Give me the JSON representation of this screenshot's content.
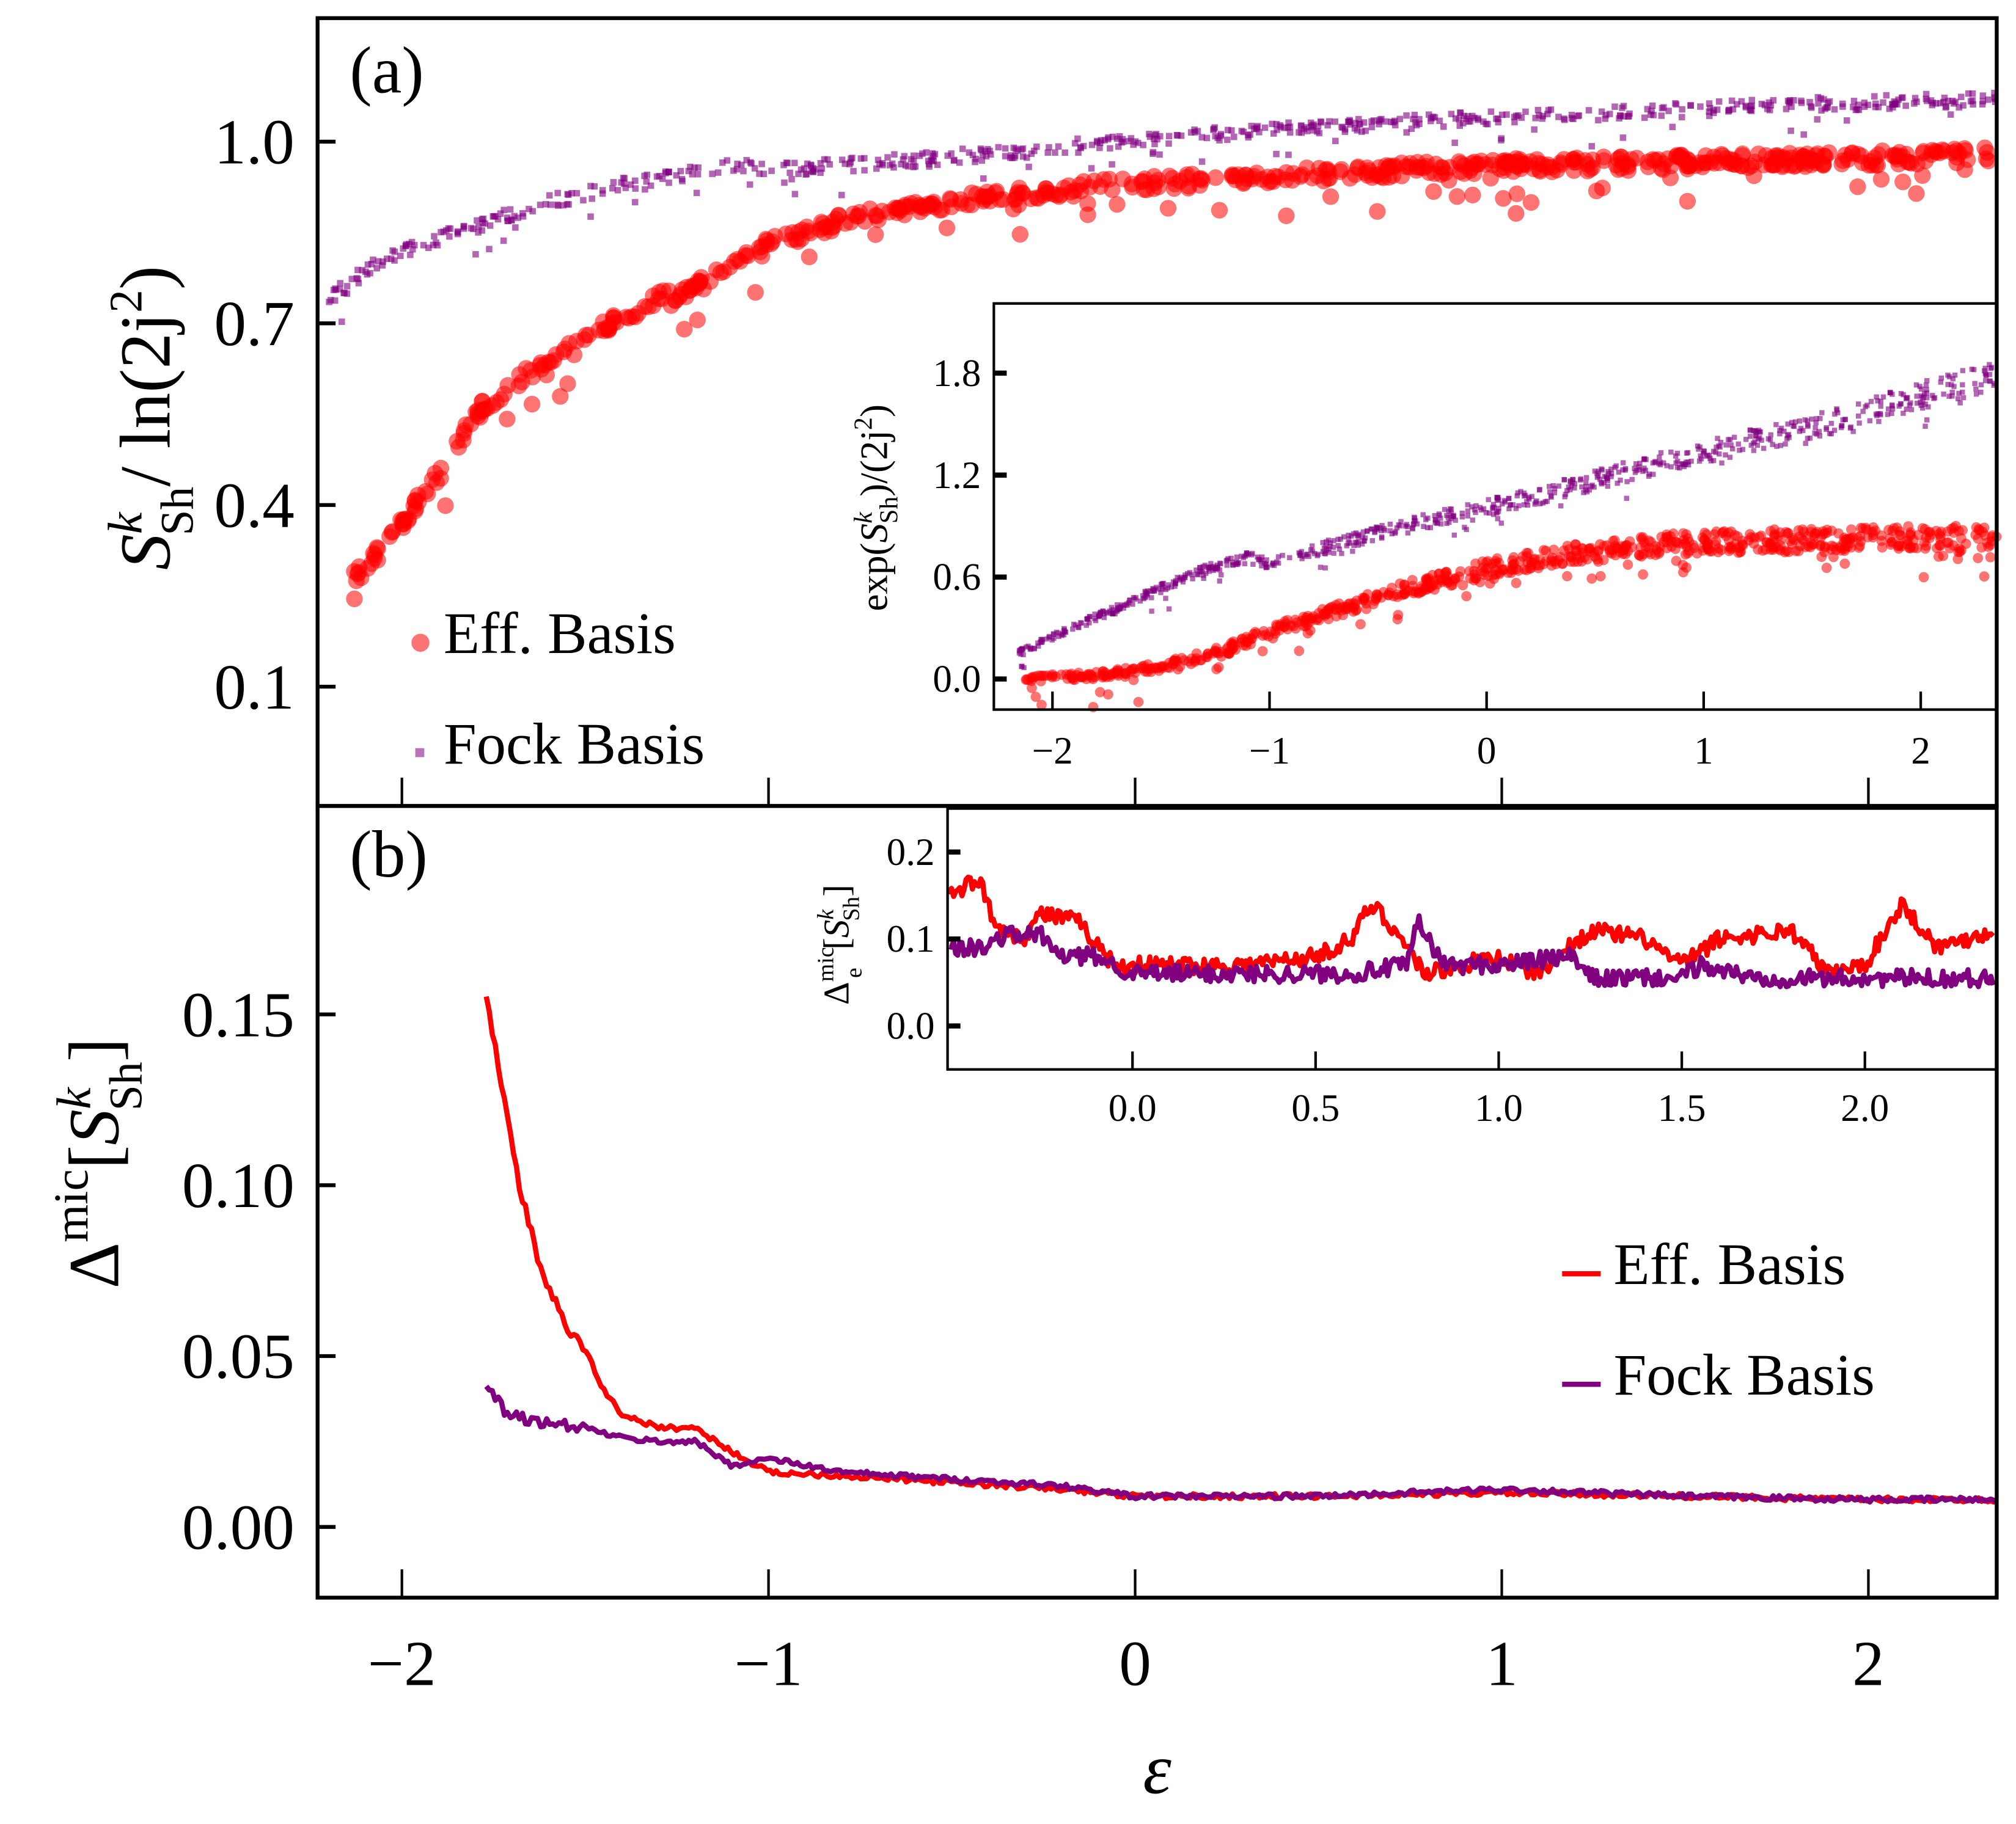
{
  "chart_data": [
    {
      "id": "a",
      "type": "scatter",
      "panel_label": "(a)",
      "ylabel": {
        "main": "S",
        "sup": "k",
        "sub": "Sh",
        "rest": "/ ln(2j",
        "sup2": "2",
        "close": ")"
      },
      "xlim": [
        -2.23,
        2.35
      ],
      "ylim": [
        -0.097,
        1.204
      ],
      "xticks": [
        -2,
        -1,
        0,
        1,
        2
      ],
      "yticks": [
        0.1,
        0.4,
        0.7,
        1.0
      ],
      "ytick_labels": [
        "0.1",
        "0.4",
        "0.7",
        "1.0"
      ],
      "legend": {
        "position": "lower-left",
        "entries": [
          "Eff. Basis",
          "Fock Basis"
        ]
      },
      "series": [
        {
          "name": "Eff. Basis",
          "color": "#ff0000",
          "marker": "circle",
          "x": [
            -2.13,
            -2.05,
            -2.0,
            -1.9,
            -1.8,
            -1.7,
            -1.6,
            -1.5,
            -1.4,
            -1.3,
            -1.2,
            -1.1,
            -1.0,
            -0.8,
            -0.6,
            -0.4,
            -0.2,
            0.0,
            0.3,
            0.6,
            1.0,
            1.4,
            1.8,
            2.2,
            2.35
          ],
          "y": [
            0.28,
            0.33,
            0.37,
            0.45,
            0.55,
            0.6,
            0.64,
            0.68,
            0.71,
            0.74,
            0.76,
            0.79,
            0.83,
            0.87,
            0.89,
            0.91,
            0.92,
            0.93,
            0.94,
            0.95,
            0.96,
            0.965,
            0.97,
            0.975,
            0.98
          ]
        },
        {
          "name": "Fock Basis",
          "color": "#800080",
          "marker": "square",
          "x": [
            -2.2,
            -2.1,
            -2.0,
            -1.8,
            -1.6,
            -1.4,
            -1.2,
            -1.1,
            -1.0,
            -0.8,
            -0.5,
            -0.2,
            0.0,
            0.4,
            0.8,
            1.2,
            1.6,
            2.0,
            2.35
          ],
          "y": [
            0.74,
            0.79,
            0.82,
            0.86,
            0.9,
            0.93,
            0.95,
            0.96,
            0.955,
            0.96,
            0.975,
            0.99,
            1.005,
            1.02,
            1.035,
            1.045,
            1.055,
            1.065,
            1.07
          ]
        }
      ]
    },
    {
      "id": "a-inset",
      "type": "scatter",
      "ylabel": {
        "pre": "exp(",
        "main": "S",
        "sup": "k",
        "sub": "Sh",
        "rest": ")/(2j",
        "sup2": "2",
        "close": ")"
      },
      "xlim": [
        -2.27,
        2.35
      ],
      "ylim": [
        -0.18,
        2.21
      ],
      "xticks": [
        -2,
        -1,
        0,
        1,
        2
      ],
      "yticks": [
        0.0,
        0.6,
        1.2,
        1.8
      ],
      "ytick_labels": [
        "0.0",
        "0.6",
        "1.2",
        "1.8"
      ],
      "series": [
        {
          "name": "Eff. Basis",
          "color": "#ff0000",
          "marker": "circle",
          "x": [
            -2.13,
            -1.8,
            -1.5,
            -1.2,
            -1.0,
            -0.7,
            -0.4,
            0.0,
            0.4,
            0.8,
            1.2,
            1.6,
            2.0,
            2.35
          ],
          "y": [
            0.0,
            0.02,
            0.07,
            0.17,
            0.28,
            0.4,
            0.52,
            0.65,
            0.74,
            0.79,
            0.81,
            0.82,
            0.82,
            0.83
          ]
        },
        {
          "name": "Fock Basis",
          "color": "#800080",
          "marker": "square",
          "x": [
            -2.15,
            -1.9,
            -1.6,
            -1.3,
            -1.1,
            -1.0,
            -0.6,
            -0.2,
            0.2,
            0.6,
            1.0,
            1.4,
            1.8,
            2.1,
            2.35
          ],
          "y": [
            0.15,
            0.3,
            0.47,
            0.64,
            0.71,
            0.68,
            0.82,
            0.95,
            1.06,
            1.2,
            1.33,
            1.45,
            1.58,
            1.7,
            1.78
          ]
        }
      ]
    },
    {
      "id": "b",
      "type": "line",
      "panel_label": "(b)",
      "ylabel": {
        "pre": "Δ",
        "sup0": "mic",
        "mid": "[",
        "main": "S",
        "sup": "k",
        "sub": "Sh",
        "close": "]"
      },
      "xlabel": "ε",
      "xlim": [
        -2.23,
        2.35
      ],
      "ylim": [
        -0.0207,
        0.211
      ],
      "xticks": [
        -2,
        -1,
        0,
        1,
        2
      ],
      "xtick_labels": [
        "−2",
        "−1",
        "0",
        "1",
        "2"
      ],
      "yticks": [
        0.0,
        0.05,
        0.1,
        0.15
      ],
      "ytick_labels": [
        "0.00",
        "0.05",
        "0.10",
        "0.15"
      ],
      "legend": {
        "position": "right",
        "entries": [
          "Eff. Basis",
          "Fock Basis"
        ]
      },
      "series": [
        {
          "name": "Eff. Basis",
          "color": "#ff0000",
          "x": [
            -1.77,
            -1.72,
            -1.68,
            -1.62,
            -1.55,
            -1.5,
            -1.45,
            -1.4,
            -1.3,
            -1.2,
            -1.1,
            -1.0,
            -0.8,
            -0.5,
            -0.2,
            0.0,
            0.5,
            1.0,
            1.5,
            2.0,
            2.35
          ],
          "y": [
            0.155,
            0.125,
            0.1,
            0.075,
            0.058,
            0.052,
            0.04,
            0.033,
            0.029,
            0.029,
            0.022,
            0.016,
            0.015,
            0.013,
            0.011,
            0.009,
            0.009,
            0.01,
            0.009,
            0.008,
            0.008
          ]
        },
        {
          "name": "Fock Basis",
          "color": "#800080",
          "x": [
            -1.77,
            -1.72,
            -1.65,
            -1.5,
            -1.4,
            -1.3,
            -1.2,
            -1.1,
            -1.0,
            -0.8,
            -0.5,
            -0.2,
            0.0,
            0.5,
            1.0,
            1.5,
            2.0,
            2.35
          ],
          "y": [
            0.042,
            0.034,
            0.031,
            0.029,
            0.026,
            0.025,
            0.025,
            0.018,
            0.02,
            0.016,
            0.014,
            0.012,
            0.009,
            0.009,
            0.011,
            0.009,
            0.008,
            0.008
          ]
        }
      ]
    },
    {
      "id": "b-inset",
      "type": "line",
      "ylabel": {
        "pre": "Δ",
        "sup0": "mic",
        "sub0": "e",
        "mid": "[",
        "main": "S",
        "sup": "k",
        "sub": "Sh",
        "close": "]"
      },
      "xlim": [
        -0.505,
        2.36
      ],
      "ylim": [
        -0.05,
        0.25
      ],
      "xticks": [
        0.0,
        0.5,
        1.0,
        1.5,
        2.0
      ],
      "xtick_labels": [
        "0.0",
        "0.5",
        "1.0",
        "1.5",
        "2.0"
      ],
      "yticks": [
        0.0,
        0.1,
        0.2
      ],
      "ytick_labels": [
        "0.0",
        "0.1",
        "0.2"
      ],
      "series": [
        {
          "name": "Eff. Basis",
          "color": "#ff0000",
          "x": [
            -0.5,
            -0.42,
            -0.38,
            -0.3,
            -0.25,
            -0.15,
            -0.05,
            0.1,
            0.3,
            0.5,
            0.6,
            0.65,
            0.7,
            0.8,
            0.9,
            1.0,
            1.1,
            1.25,
            1.4,
            1.5,
            1.6,
            1.8,
            1.9,
            2.0,
            2.1,
            2.2,
            2.35
          ],
          "y": [
            0.15,
            0.17,
            0.12,
            0.1,
            0.13,
            0.12,
            0.07,
            0.07,
            0.07,
            0.08,
            0.1,
            0.14,
            0.12,
            0.06,
            0.07,
            0.08,
            0.06,
            0.11,
            0.1,
            0.07,
            0.1,
            0.11,
            0.06,
            0.07,
            0.14,
            0.09,
            0.11
          ]
        },
        {
          "name": "Fock Basis",
          "color": "#800080",
          "x": [
            -0.5,
            -0.4,
            -0.35,
            -0.25,
            -0.2,
            -0.1,
            0.0,
            0.3,
            0.6,
            0.75,
            0.78,
            0.85,
            1.0,
            1.2,
            1.25,
            1.5,
            1.55,
            1.7,
            2.0,
            2.35
          ],
          "y": [
            0.09,
            0.09,
            0.105,
            0.105,
            0.08,
            0.08,
            0.06,
            0.06,
            0.06,
            0.07,
            0.12,
            0.07,
            0.07,
            0.08,
            0.055,
            0.055,
            0.07,
            0.055,
            0.055,
            0.055
          ]
        }
      ]
    }
  ]
}
